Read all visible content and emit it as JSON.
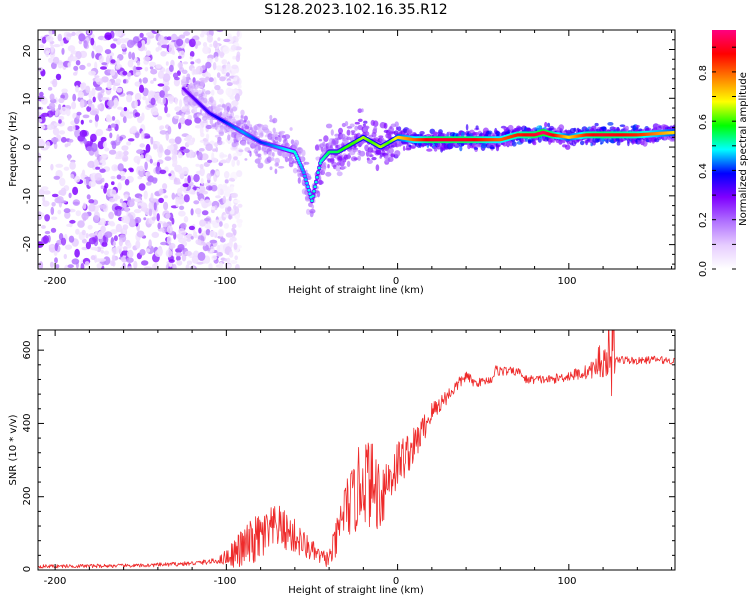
{
  "title": "S128.2023.102.16.35.R12",
  "chart_data": [
    {
      "type": "heatmap",
      "panel": "spectrogram",
      "xlabel": "Height of straight line (km)",
      "ylabel": "Frequency (Hz)",
      "xlim": [
        -210,
        162
      ],
      "ylim": [
        -25,
        24
      ],
      "x_ticks": [
        "-200",
        "-100",
        "0",
        "100"
      ],
      "y_ticks": [
        "20",
        "10",
        "0",
        "-10",
        "-20"
      ],
      "colorbar": {
        "label": "Normalized spectral amplitude",
        "range": [
          0,
          0.97
        ],
        "ticks": [
          "0.0",
          "0.2",
          "0.4",
          "0.6",
          "0.8"
        ],
        "colors": [
          "#ffffff",
          "#e6ccff",
          "#b070ff",
          "#8000ff",
          "#0000ff",
          "#00ffff",
          "#00ff00",
          "#ffff00",
          "#ff8000",
          "#ff0000",
          "#ff0080"
        ]
      },
      "ridge": {
        "x": [
          -125,
          -110,
          -100,
          -90,
          -80,
          -70,
          -60,
          -55,
          -50,
          -45,
          -40,
          -35,
          -30,
          -25,
          -20,
          -15,
          -10,
          -5,
          0,
          10,
          20,
          40,
          60,
          70,
          80,
          85,
          90,
          100,
          110,
          120,
          140,
          162
        ],
        "freq": [
          12,
          7,
          5,
          3,
          1,
          0,
          -1,
          -5,
          -11,
          -3,
          -1,
          -1,
          0,
          1,
          2,
          1,
          0,
          1,
          2,
          1.5,
          1.5,
          1.5,
          1.5,
          2.5,
          2.5,
          3,
          2.5,
          2,
          2.5,
          2.5,
          2.5,
          3
        ],
        "amplitude": [
          0.3,
          0.35,
          0.4,
          0.45,
          0.4,
          0.45,
          0.5,
          0.45,
          0.5,
          0.5,
          0.55,
          0.55,
          0.6,
          0.6,
          0.65,
          0.6,
          0.65,
          0.6,
          0.7,
          0.8,
          0.9,
          0.9,
          0.8,
          0.85,
          0.9,
          0.95,
          0.9,
          0.7,
          0.85,
          0.9,
          0.85,
          0.7
        ]
      },
      "noise_region": {
        "x_range": [
          -210,
          -100
        ],
        "freq_range": [
          -25,
          24
        ],
        "amplitude_range": [
          0.05,
          0.3
        ]
      }
    },
    {
      "type": "line",
      "panel": "snr",
      "xlabel": "Height of straight line (km)",
      "ylabel": "SNR (10 * v/v)",
      "xlim": [
        -210,
        162
      ],
      "ylim": [
        0,
        655
      ],
      "x_ticks": [
        "-200",
        "-100",
        "0",
        "100"
      ],
      "y_ticks": [
        "600",
        "400",
        "200",
        "0"
      ],
      "color": "#ee2a2a",
      "x": [
        -210,
        -150,
        -120,
        -105,
        -98,
        -90,
        -80,
        -75,
        -70,
        -60,
        -55,
        -45,
        -40,
        -35,
        -32,
        -28,
        -25,
        -20,
        -15,
        -10,
        -5,
        0,
        10,
        20,
        30,
        40,
        45,
        55,
        57,
        72,
        74,
        90,
        100,
        110,
        115,
        118,
        125,
        130,
        140,
        150,
        162
      ],
      "y": [
        10,
        12,
        18,
        25,
        40,
        60,
        90,
        100,
        120,
        90,
        70,
        35,
        30,
        90,
        160,
        180,
        190,
        260,
        230,
        210,
        250,
        290,
        340,
        430,
        480,
        530,
        510,
        520,
        545,
        540,
        520,
        520,
        530,
        540,
        550,
        570,
        565,
        575,
        570,
        575,
        570
      ],
      "spread": [
        5,
        5,
        6,
        8,
        30,
        60,
        70,
        70,
        60,
        50,
        40,
        20,
        25,
        60,
        80,
        90,
        100,
        130,
        120,
        110,
        80,
        70,
        50,
        30,
        20,
        15,
        12,
        10,
        15,
        10,
        12,
        12,
        15,
        20,
        25,
        60,
        20,
        12,
        10,
        10,
        10
      ]
    }
  ]
}
